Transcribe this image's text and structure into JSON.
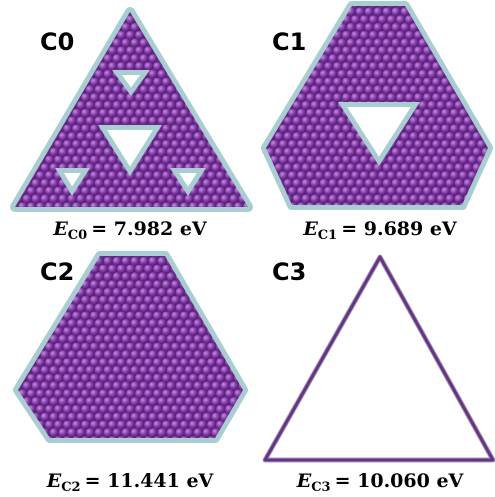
{
  "panels": [
    {
      "label": "C0",
      "symbol": "E",
      "subscript": "C0",
      "equation": "= 7.982 eV"
    },
    {
      "label": "C1",
      "symbol": "E",
      "subscript": "C1",
      "equation": "= 9.689 eV"
    },
    {
      "label": "C2",
      "symbol": "E",
      "subscript": "C2",
      "equation": "= 11.441 eV"
    },
    {
      "label": "C3",
      "symbol": "E",
      "subscript": "C3",
      "equation": "= 10.060 eV"
    }
  ]
}
